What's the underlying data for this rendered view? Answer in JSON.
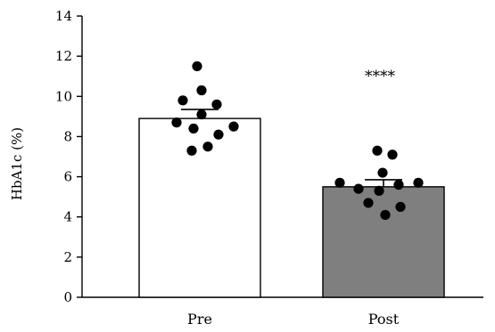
{
  "chart_data": {
    "type": "bar",
    "categories": [
      "Pre",
      "Post"
    ],
    "ylabel": "HbA1c (%)",
    "ylim": [
      0,
      14
    ],
    "yticks": [
      "0",
      "2",
      "4",
      "6",
      "8",
      "10",
      "12",
      "14"
    ],
    "bars": [
      {
        "category": "Pre",
        "mean": 8.9,
        "error": 0.45,
        "fill": "#ffffff",
        "points": [
          11.5,
          10.3,
          9.8,
          9.6,
          9.1,
          8.7,
          8.5,
          8.4,
          8.1,
          7.5,
          7.3
        ]
      },
      {
        "category": "Post",
        "mean": 5.5,
        "error": 0.35,
        "fill": "#7f7f7f",
        "points": [
          7.3,
          7.1,
          6.2,
          5.7,
          5.7,
          5.6,
          5.4,
          5.3,
          4.7,
          4.5,
          4.1
        ]
      }
    ],
    "annotations": [
      {
        "category": "Post",
        "text": "****"
      }
    ],
    "grid": false,
    "legend": "none"
  }
}
